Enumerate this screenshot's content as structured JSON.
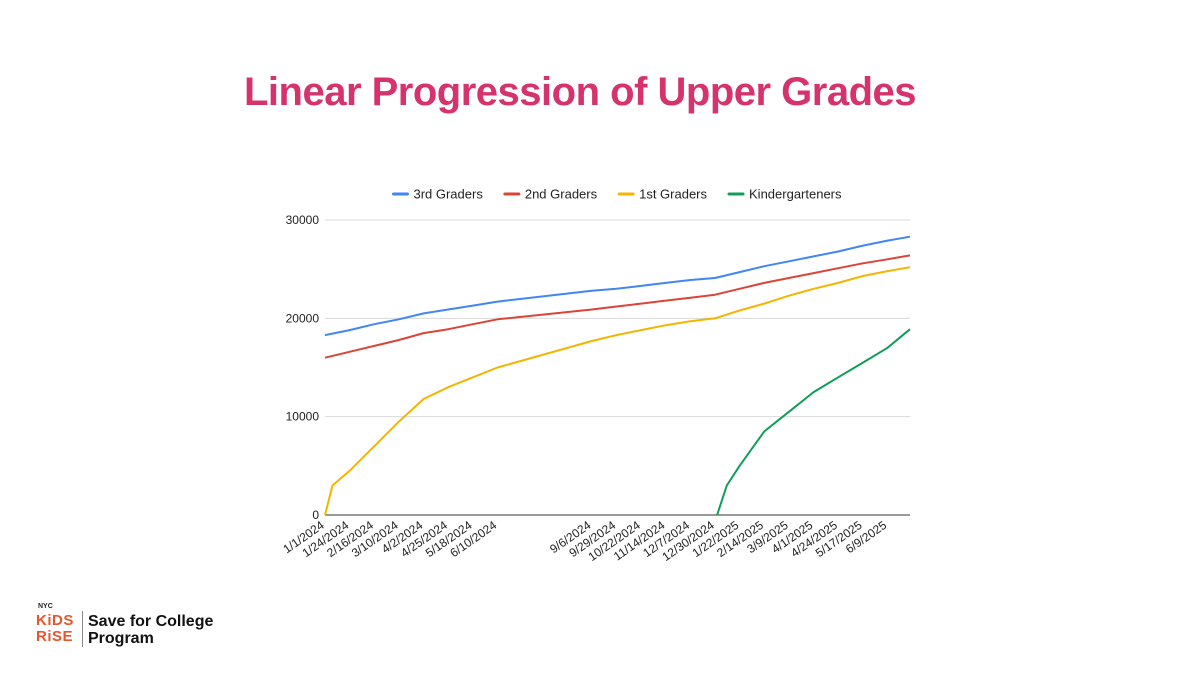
{
  "slide": {
    "title": "Linear Progression of Upper Grades",
    "title_color": "#D6336C"
  },
  "footer": {
    "logo_nyc": "NYC",
    "logo_kids": "KiDS",
    "logo_rise": "RiSE",
    "logo_color": "#E8552D",
    "program_name": "Save for College Program"
  },
  "chart_data": {
    "type": "line",
    "title": "",
    "xlabel": "",
    "ylabel": "",
    "x_range": [
      "1/1/2024",
      "6/30/2025"
    ],
    "x_ticks": [
      "1/1/2024",
      "1/24/2024",
      "2/16/2024",
      "3/10/2024",
      "4/2/2024",
      "4/25/2024",
      "5/18/2024",
      "6/10/2024",
      "9/6/2024",
      "9/29/2024",
      "10/22/2024",
      "11/14/2024",
      "12/7/2024",
      "12/30/2024",
      "1/22/2025",
      "2/14/2025",
      "3/9/2025",
      "4/1/2025",
      "4/24/2025",
      "5/17/2025",
      "6/9/2025"
    ],
    "ylim": [
      0,
      30000
    ],
    "y_ticks": [
      "0",
      "10000",
      "20000",
      "30000"
    ],
    "grid": true,
    "legend_position": "top",
    "series": [
      {
        "name": "3rd Graders",
        "color": "#4285F4",
        "points": [
          [
            "1/1/2024",
            18300
          ],
          [
            "1/24/2024",
            18800
          ],
          [
            "2/16/2024",
            19400
          ],
          [
            "3/10/2024",
            19900
          ],
          [
            "4/2/2024",
            20500
          ],
          [
            "4/25/2024",
            20900
          ],
          [
            "5/18/2024",
            21300
          ],
          [
            "6/10/2024",
            21700
          ],
          [
            "9/6/2024",
            22800
          ],
          [
            "9/29/2024",
            23000
          ],
          [
            "10/22/2024",
            23300
          ],
          [
            "11/14/2024",
            23600
          ],
          [
            "12/7/2024",
            23900
          ],
          [
            "12/30/2024",
            24100
          ],
          [
            "1/22/2025",
            24700
          ],
          [
            "2/14/2025",
            25300
          ],
          [
            "3/9/2025",
            25800
          ],
          [
            "4/1/2025",
            26300
          ],
          [
            "4/24/2025",
            26800
          ],
          [
            "5/17/2025",
            27400
          ],
          [
            "6/9/2025",
            27900
          ],
          [
            "6/30/2025",
            28300
          ]
        ]
      },
      {
        "name": "2nd Graders",
        "color": "#DB4437",
        "points": [
          [
            "1/1/2024",
            16000
          ],
          [
            "1/24/2024",
            16600
          ],
          [
            "2/16/2024",
            17200
          ],
          [
            "3/10/2024",
            17800
          ],
          [
            "4/2/2024",
            18500
          ],
          [
            "4/25/2024",
            18900
          ],
          [
            "5/18/2024",
            19400
          ],
          [
            "6/10/2024",
            19900
          ],
          [
            "9/6/2024",
            20900
          ],
          [
            "9/29/2024",
            21200
          ],
          [
            "10/22/2024",
            21500
          ],
          [
            "11/14/2024",
            21800
          ],
          [
            "12/7/2024",
            22100
          ],
          [
            "12/30/2024",
            22400
          ],
          [
            "1/22/2025",
            23000
          ],
          [
            "2/14/2025",
            23600
          ],
          [
            "3/9/2025",
            24100
          ],
          [
            "4/1/2025",
            24600
          ],
          [
            "4/24/2025",
            25100
          ],
          [
            "5/17/2025",
            25600
          ],
          [
            "6/9/2025",
            26000
          ],
          [
            "6/30/2025",
            26400
          ]
        ]
      },
      {
        "name": "1st Graders",
        "color": "#F4B400",
        "points": [
          [
            "1/1/2024",
            0
          ],
          [
            "1/8/2024",
            3000
          ],
          [
            "1/24/2024",
            4500
          ],
          [
            "2/16/2024",
            7000
          ],
          [
            "3/10/2024",
            9500
          ],
          [
            "4/2/2024",
            11800
          ],
          [
            "4/25/2024",
            13000
          ],
          [
            "5/18/2024",
            14000
          ],
          [
            "6/10/2024",
            15000
          ],
          [
            "9/6/2024",
            17700
          ],
          [
            "9/29/2024",
            18300
          ],
          [
            "10/22/2024",
            18800
          ],
          [
            "11/14/2024",
            19300
          ],
          [
            "12/7/2024",
            19700
          ],
          [
            "12/30/2024",
            20000
          ],
          [
            "1/22/2025",
            20800
          ],
          [
            "2/14/2025",
            21500
          ],
          [
            "3/9/2025",
            22300
          ],
          [
            "4/1/2025",
            23000
          ],
          [
            "4/24/2025",
            23600
          ],
          [
            "5/17/2025",
            24300
          ],
          [
            "6/9/2025",
            24800
          ],
          [
            "6/30/2025",
            25200
          ]
        ]
      },
      {
        "name": "Kindergarteners",
        "color": "#0F9D58",
        "points": [
          [
            "1/1/2025",
            0
          ],
          [
            "1/10/2025",
            3000
          ],
          [
            "1/22/2025",
            5000
          ],
          [
            "2/14/2025",
            8500
          ],
          [
            "3/9/2025",
            10500
          ],
          [
            "4/1/2025",
            12500
          ],
          [
            "4/24/2025",
            14000
          ],
          [
            "5/17/2025",
            15500
          ],
          [
            "6/9/2025",
            17000
          ],
          [
            "6/30/2025",
            18900
          ]
        ]
      }
    ]
  }
}
